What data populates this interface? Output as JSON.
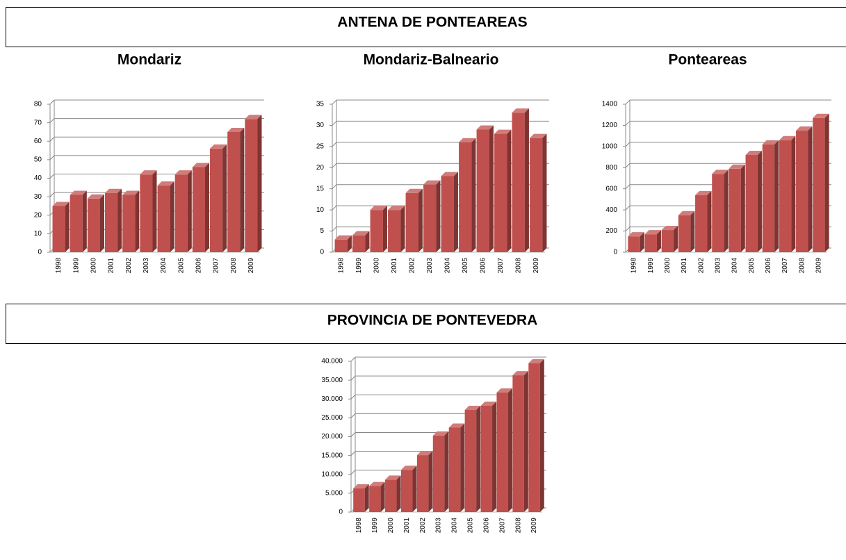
{
  "headers": [
    "ANTENA DE PONTEAREAS",
    "PROVINCIA DE PONTEVEDRA"
  ],
  "chart_data": [
    {
      "type": "bar",
      "title": "Mondariz",
      "categories": [
        "1998",
        "1999",
        "2000",
        "2001",
        "2002",
        "2003",
        "2004",
        "2005",
        "2006",
        "2007",
        "2008",
        "2009"
      ],
      "values": [
        25,
        31,
        29,
        32,
        31,
        42,
        36,
        42,
        46,
        56,
        65,
        72
      ],
      "color": "#c0504d",
      "ylim": [
        0,
        80
      ],
      "yticks": [
        0,
        10,
        20,
        30,
        40,
        50,
        60,
        70,
        80
      ],
      "grid": true
    },
    {
      "type": "bar",
      "title": "Mondariz-Balneario",
      "categories": [
        "1998",
        "1999",
        "2000",
        "2001",
        "2002",
        "2003",
        "2004",
        "2005",
        "2006",
        "2007",
        "2008",
        "2009"
      ],
      "values": [
        3,
        4,
        10,
        10,
        14,
        16,
        18,
        26,
        29,
        28,
        33,
        27
      ],
      "color": "#c0504d",
      "ylim": [
        0,
        35
      ],
      "yticks": [
        0,
        5,
        10,
        15,
        20,
        25,
        30,
        35
      ],
      "grid": true
    },
    {
      "type": "bar",
      "title": "Ponteareas",
      "categories": [
        "1998",
        "1999",
        "2000",
        "2001",
        "2002",
        "2003",
        "2004",
        "2005",
        "2006",
        "2007",
        "2008",
        "2009"
      ],
      "values": [
        150,
        170,
        210,
        350,
        540,
        740,
        790,
        920,
        1020,
        1060,
        1150,
        1270
      ],
      "color": "#c0504d",
      "ylim": [
        0,
        1400
      ],
      "yticks": [
        0,
        200,
        400,
        600,
        800,
        1000,
        1200,
        1400
      ],
      "grid": true
    },
    {
      "type": "bar",
      "categories": [
        "1998",
        "1999",
        "2000",
        "2001",
        "2002",
        "2003",
        "2004",
        "2005",
        "2006",
        "2007",
        "2008",
        "2009"
      ],
      "values": [
        6300,
        6900,
        8600,
        11200,
        15100,
        20300,
        22400,
        27100,
        28200,
        31700,
        36300,
        39500
      ],
      "color": "#c0504d",
      "ylim": [
        0,
        40000
      ],
      "yticks": [
        0,
        {
          "value": 5000,
          "label": "5.000"
        },
        {
          "value": 10000,
          "label": "10.000"
        },
        {
          "value": 15000,
          "label": "15.000"
        },
        {
          "value": 20000,
          "label": "20.000"
        },
        {
          "value": 25000,
          "label": "25.000"
        },
        {
          "value": 30000,
          "label": "30.000"
        },
        {
          "value": 35000,
          "label": "35.000"
        },
        {
          "value": 40000,
          "label": "40.000"
        }
      ],
      "grid": true
    }
  ]
}
